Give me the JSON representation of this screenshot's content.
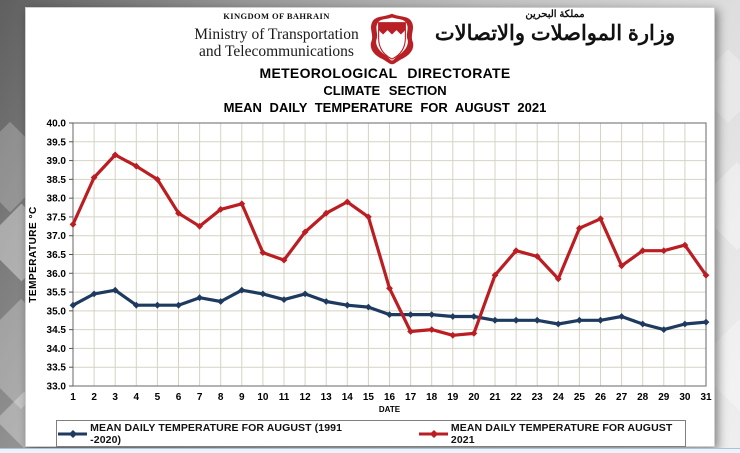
{
  "header": {
    "kingdom": "KINGDOM OF BAHRAIN",
    "ministry_line1": "Ministry of Transportation",
    "ministry_line2": "and Telecommunications",
    "arabic_kingdom": "مملكة البحرين",
    "arabic_ministry": "وزارة المواصلات والاتصالات",
    "emblem_icon": "bahrain-coat-of-arms",
    "emblem_color": "#b92025"
  },
  "titles": {
    "line1": "METEOROLOGICAL DIRECTORATE",
    "line2": "CLIMATE SECTION",
    "line3": "MEAN DAILY TEMPERATURE FOR AUGUST 2021"
  },
  "chart_data": {
    "type": "line",
    "x": [
      1,
      2,
      3,
      4,
      5,
      6,
      7,
      8,
      9,
      10,
      11,
      12,
      13,
      14,
      15,
      16,
      17,
      18,
      19,
      20,
      21,
      22,
      23,
      24,
      25,
      26,
      27,
      28,
      29,
      30,
      31
    ],
    "series": [
      {
        "name": "MEAN DAILY TEMPERATURE FOR AUGUST (1991 -2020)",
        "color": "#1f3a5f",
        "values": [
          35.15,
          35.45,
          35.55,
          35.15,
          35.15,
          35.15,
          35.35,
          35.25,
          35.55,
          35.45,
          35.3,
          35.45,
          35.25,
          35.15,
          35.1,
          34.9,
          34.9,
          34.9,
          34.85,
          34.85,
          34.75,
          34.75,
          34.75,
          34.65,
          34.75,
          34.75,
          34.85,
          34.65,
          34.5,
          34.65,
          34.7
        ]
      },
      {
        "name": "MEAN DAILY TEMPERATURE FOR AUGUST 2021",
        "color": "#ba1e23",
        "values": [
          37.3,
          38.55,
          39.15,
          38.85,
          38.5,
          37.6,
          37.25,
          37.7,
          37.85,
          36.55,
          36.35,
          37.1,
          37.6,
          37.9,
          37.5,
          35.6,
          34.45,
          34.5,
          34.35,
          34.4,
          35.95,
          36.6,
          36.45,
          35.85,
          37.2,
          37.45,
          36.2,
          36.6,
          36.6,
          36.75,
          35.95
        ]
      }
    ],
    "title": "MEAN DAILY TEMPERATURE FOR AUGUST 2021",
    "xlabel": "DATE",
    "ylabel": "TEMPERATURE °C",
    "ylim": [
      33.0,
      40.0
    ],
    "ytick_step": 0.5,
    "grid": true,
    "grid_color": "#d6d3c4",
    "frame_color": "#808080",
    "legend_position": "bottom"
  }
}
